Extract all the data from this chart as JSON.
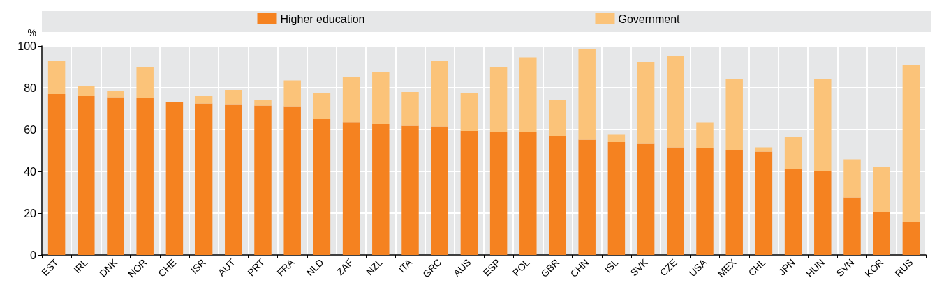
{
  "chart_data": {
    "type": "bar",
    "stacked": true,
    "ylabel": "%",
    "categories": [
      "EST",
      "IRL",
      "DNK",
      "NOR",
      "CHE",
      "ISR",
      "AUT",
      "PRT",
      "FRA",
      "NLD",
      "ZAF",
      "NZL",
      "ITA",
      "GRC",
      "AUS",
      "ESP",
      "POL",
      "GBR",
      "CHN",
      "ISL",
      "SVK",
      "CZE",
      "USA",
      "MEX",
      "CHL",
      "JPN",
      "HUN",
      "SVN",
      "KOR",
      "RUS"
    ],
    "series": [
      {
        "name": "Higher education",
        "color": "#f58220",
        "values": [
          77,
          76,
          75.5,
          75,
          73.3,
          72.5,
          72.2,
          71.5,
          71.2,
          65,
          63.6,
          62.7,
          61.8,
          61.5,
          59.3,
          59,
          59,
          57,
          55.2,
          54,
          53.5,
          51.5,
          51.2,
          50,
          49.5,
          41,
          40,
          27.5,
          20.5,
          16
        ]
      },
      {
        "name": "Government",
        "color": "#fbc379",
        "values": [
          16,
          4.7,
          3,
          15,
          0,
          3.5,
          6.8,
          2.5,
          12.3,
          12.5,
          21.4,
          24.8,
          16.2,
          31.2,
          18.2,
          31,
          35.5,
          17,
          43.1,
          3.5,
          38.8,
          43.5,
          12.3,
          34,
          2,
          15.5,
          44,
          18.3,
          21.8,
          75
        ]
      }
    ],
    "ylim": [
      0,
      100
    ],
    "yticks": [
      0,
      20,
      40,
      60,
      80,
      100
    ],
    "grid": true,
    "legend": "top"
  }
}
